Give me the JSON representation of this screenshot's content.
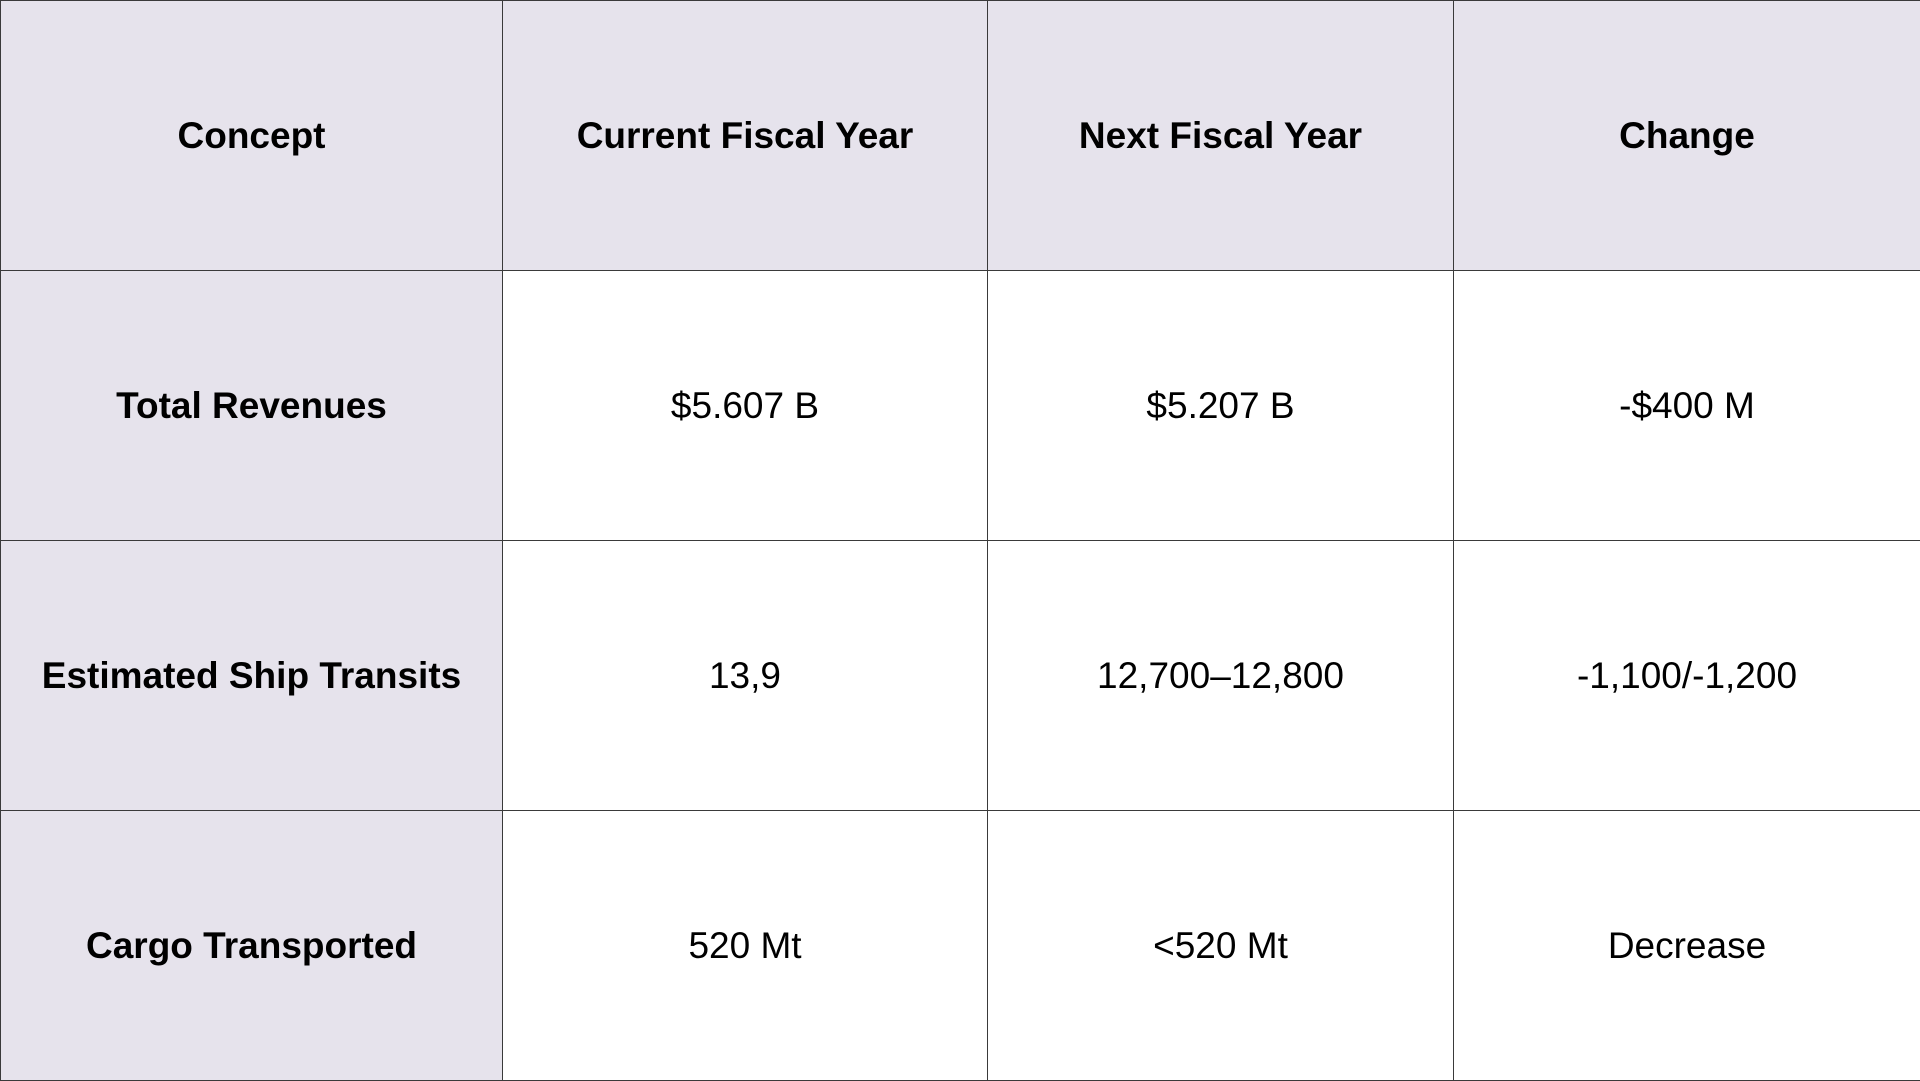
{
  "table": {
    "headers": [
      "Concept",
      "Current Fiscal Year",
      "Next Fiscal Year",
      "Change"
    ],
    "rows": [
      [
        "Total Revenues",
        "$5.607 B",
        "$5.207 B",
        "-$400 M"
      ],
      [
        "Estimated Ship Transits",
        "13,9",
        "12,700–12,800",
        "-1,100/-1,200"
      ],
      [
        "Cargo Transported",
        "520 Mt",
        "<520 Mt",
        "Decrease"
      ]
    ]
  },
  "colors": {
    "header_bg": "#e6e3ec",
    "cell_bg": "#ffffff",
    "border": "#3a3a3a",
    "text": "#000000"
  }
}
